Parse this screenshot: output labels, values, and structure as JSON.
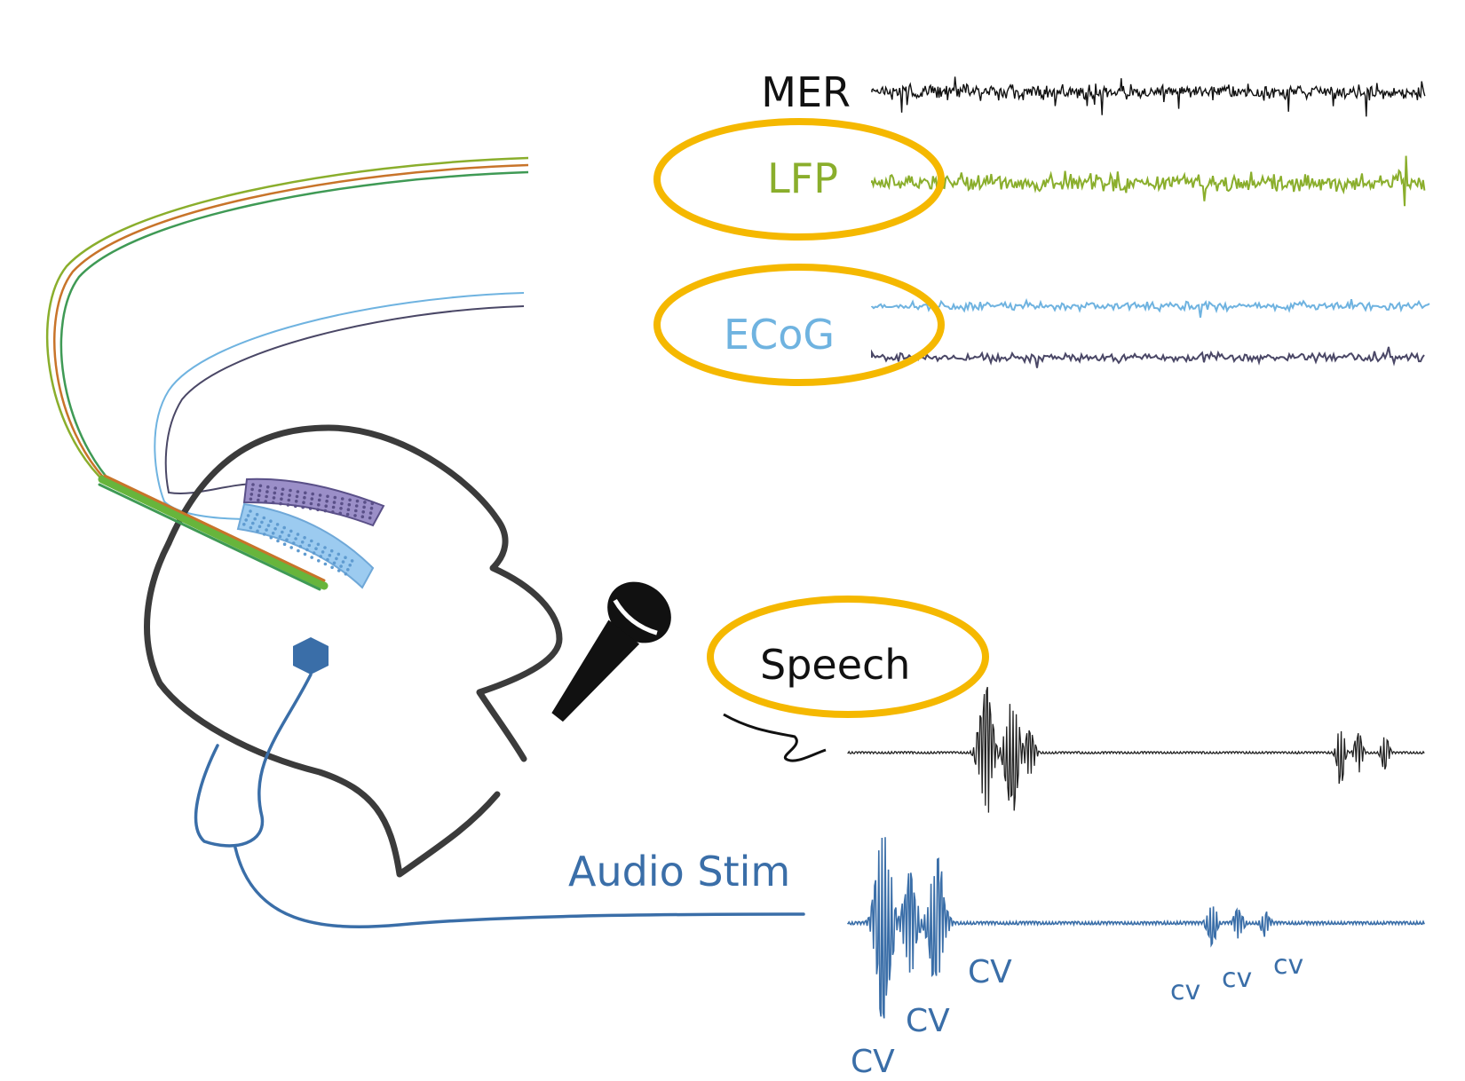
{
  "labels": {
    "mer": "MER",
    "lfp": "LFP",
    "ecog": "ECoG",
    "speech": "Speech",
    "audio_stim": "Audio Stim",
    "cv": "CV",
    "cv_small": "cv"
  },
  "colors": {
    "mer": "#111111",
    "lfp": "#8aae2c",
    "ecog_top": "#6fb3e0",
    "ecog_bottom": "#4a4766",
    "audio": "#3a6ea8",
    "highlight": "#f5b800",
    "head_outline": "#3b3b3b",
    "lead_orange": "#c8742a",
    "lead_green": "#67b53c",
    "grid_purple": "#9b8fc8",
    "grid_blue": "#9ccbf0"
  },
  "icons": [
    "microphone-icon",
    "electrode-hexagon-icon"
  ]
}
